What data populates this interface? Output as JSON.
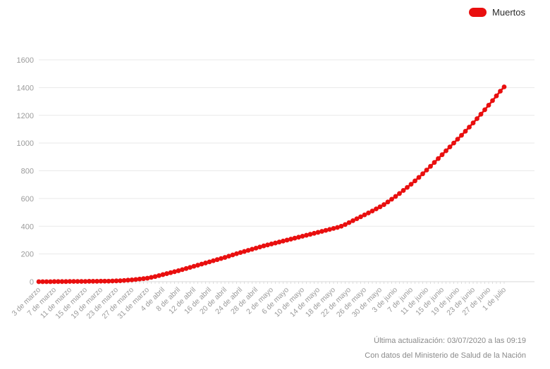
{
  "legend": {
    "label": "Muertos",
    "color": "#e90f0f"
  },
  "footer": {
    "line1": "Última actualización: 03/07/2020 a las 09:19",
    "line2": "Con datos del Ministerio de Salud de la Nación"
  },
  "colors": {
    "background": "#ffffff",
    "grid": "#e9e9e9",
    "axis_line": "#d7d7d7",
    "tick": "#dcdcdc",
    "axis_labels": "#9b9b9b",
    "footer_text": "#8a8a8a",
    "legend_text": "#2b2b2b",
    "series_red": "#e90f0f"
  },
  "chart_data": {
    "type": "line",
    "title": "",
    "xlabel": "",
    "ylabel": "",
    "grid": "horizontal",
    "legend_position": "top-right",
    "marker": "circle",
    "ylim": [
      0,
      1600
    ],
    "y_ticks": [
      0,
      200,
      400,
      600,
      800,
      1000,
      1200,
      1400,
      1600
    ],
    "x_unit": "daily dates from 3 de marzo to 1 de julio (2020)",
    "x_tick_every": 4,
    "x_tick_labels": [
      "3 de marzo",
      "7 de marzo",
      "11 de marzo",
      "15 de marzo",
      "19 de marzo",
      "23 de marzo",
      "27 de marzo",
      "31 de marzo",
      "4 de abril",
      "8 de abril",
      "12 de abril",
      "16 de abril",
      "20 de abril",
      "24 de abril",
      "28 de abril",
      "2 de mayo",
      "6 de mayo",
      "10 de mayo",
      "14 de mayo",
      "18 de mayo",
      "22 de mayo",
      "26 de mayo",
      "30 de mayo",
      "3 de junio",
      "7 de junio",
      "11 de junio",
      "15 de junio",
      "19 de junio",
      "23 de junio",
      "27 de junio",
      "1 de julio"
    ],
    "series": [
      {
        "name": "Muertos",
        "color": "#e90f0f",
        "values": [
          0,
          0,
          0,
          0,
          1,
          1,
          1,
          1,
          2,
          2,
          2,
          2,
          2,
          3,
          3,
          3,
          4,
          4,
          4,
          5,
          6,
          7,
          9,
          11,
          13,
          16,
          19,
          22,
          25,
          31,
          37,
          44,
          51,
          58,
          65,
          72,
          79,
          87,
          95,
          103,
          111,
          119,
          127,
          135,
          143,
          151,
          159,
          167,
          175,
          184,
          193,
          202,
          210,
          218,
          226,
          234,
          242,
          250,
          258,
          265,
          272,
          279,
          286,
          293,
          300,
          307,
          314,
          321,
          328,
          335,
          342,
          349,
          356,
          363,
          370,
          377,
          384,
          391,
          400,
          412,
          426,
          440,
          454,
          468,
          482,
          496,
          510,
          525,
          540,
          556,
          575,
          595,
          615,
          636,
          658,
          680,
          703,
          727,
          752,
          778,
          805,
          832,
          860,
          888,
          916,
          944,
          972,
          1000,
          1028,
          1056,
          1085,
          1115,
          1145,
          1176,
          1208,
          1240,
          1273,
          1306,
          1340,
          1374,
          1405
        ]
      }
    ]
  }
}
